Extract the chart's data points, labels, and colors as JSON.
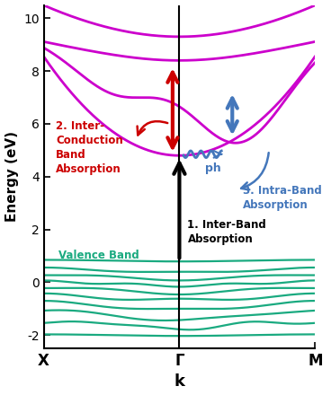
{
  "xlabel": "k",
  "ylabel": "Energy (eV)",
  "ylim": [
    -2.5,
    10.5
  ],
  "yticks": [
    -2,
    0,
    2,
    4,
    6,
    8,
    10
  ],
  "xtick_labels": [
    "X",
    "Γ",
    "M"
  ],
  "bg_color": "#ffffff",
  "valence_color": "#1aaa80",
  "conduction_color": "#cc00cc",
  "arrow1_color": "#000000",
  "arrow2_color": "#cc0000",
  "arrow3_color": "#4477bb",
  "label_valence": "Valence Band",
  "label1": "1. Inter-Band\nAbsorption",
  "label2": "2. Inter-\nConduction\nBand\nAbsorption",
  "label3": "3. Intra-Band\nAbsorption"
}
